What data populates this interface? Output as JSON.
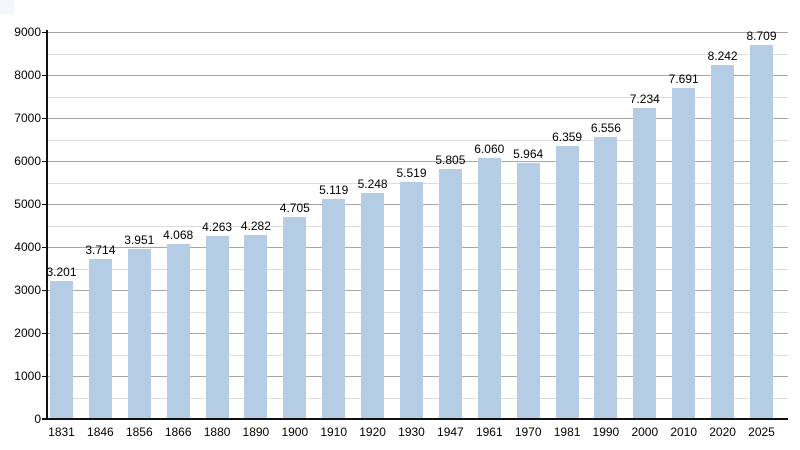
{
  "window": {
    "background": "#ffffff"
  },
  "artifact_square": {
    "color": "#f3f6fa"
  },
  "chart_data": {
    "type": "bar",
    "title": "",
    "xlabel": "",
    "ylabel": "",
    "categories": [
      "1831",
      "1846",
      "1856",
      "1866",
      "1880",
      "1890",
      "1900",
      "1910",
      "1920",
      "1930",
      "1947",
      "1961",
      "1970",
      "1981",
      "1990",
      "2000",
      "2010",
      "2020",
      "2025"
    ],
    "values": [
      3201,
      3714,
      3951,
      4068,
      4263,
      4282,
      4705,
      5119,
      5248,
      5519,
      5805,
      6060,
      5964,
      6359,
      6556,
      7234,
      7691,
      8242,
      8709
    ],
    "value_labels": [
      "3.201",
      "3.714",
      "3.951",
      "4.068",
      "4.263",
      "4.282",
      "4.705",
      "5.119",
      "5.248",
      "5.519",
      "5.805",
      "6.060",
      "5.964",
      "6.359",
      "6.556",
      "7.234",
      "7.691",
      "8.242",
      "8.709"
    ],
    "ylim": [
      0,
      9000
    ],
    "y_major_step": 1000,
    "y_minor_step": 500,
    "y_tick_labels": [
      "0",
      "1000",
      "2000",
      "3000",
      "4000",
      "5000",
      "6000",
      "7000",
      "8000",
      "9000"
    ],
    "grid": "on",
    "legend": "none",
    "bar_color": "#b4cce4",
    "major_grid_color": "#a6a6a6",
    "minor_grid_color": "#dcdcdc",
    "axis_color": "#111111",
    "label_color": "#000000"
  }
}
